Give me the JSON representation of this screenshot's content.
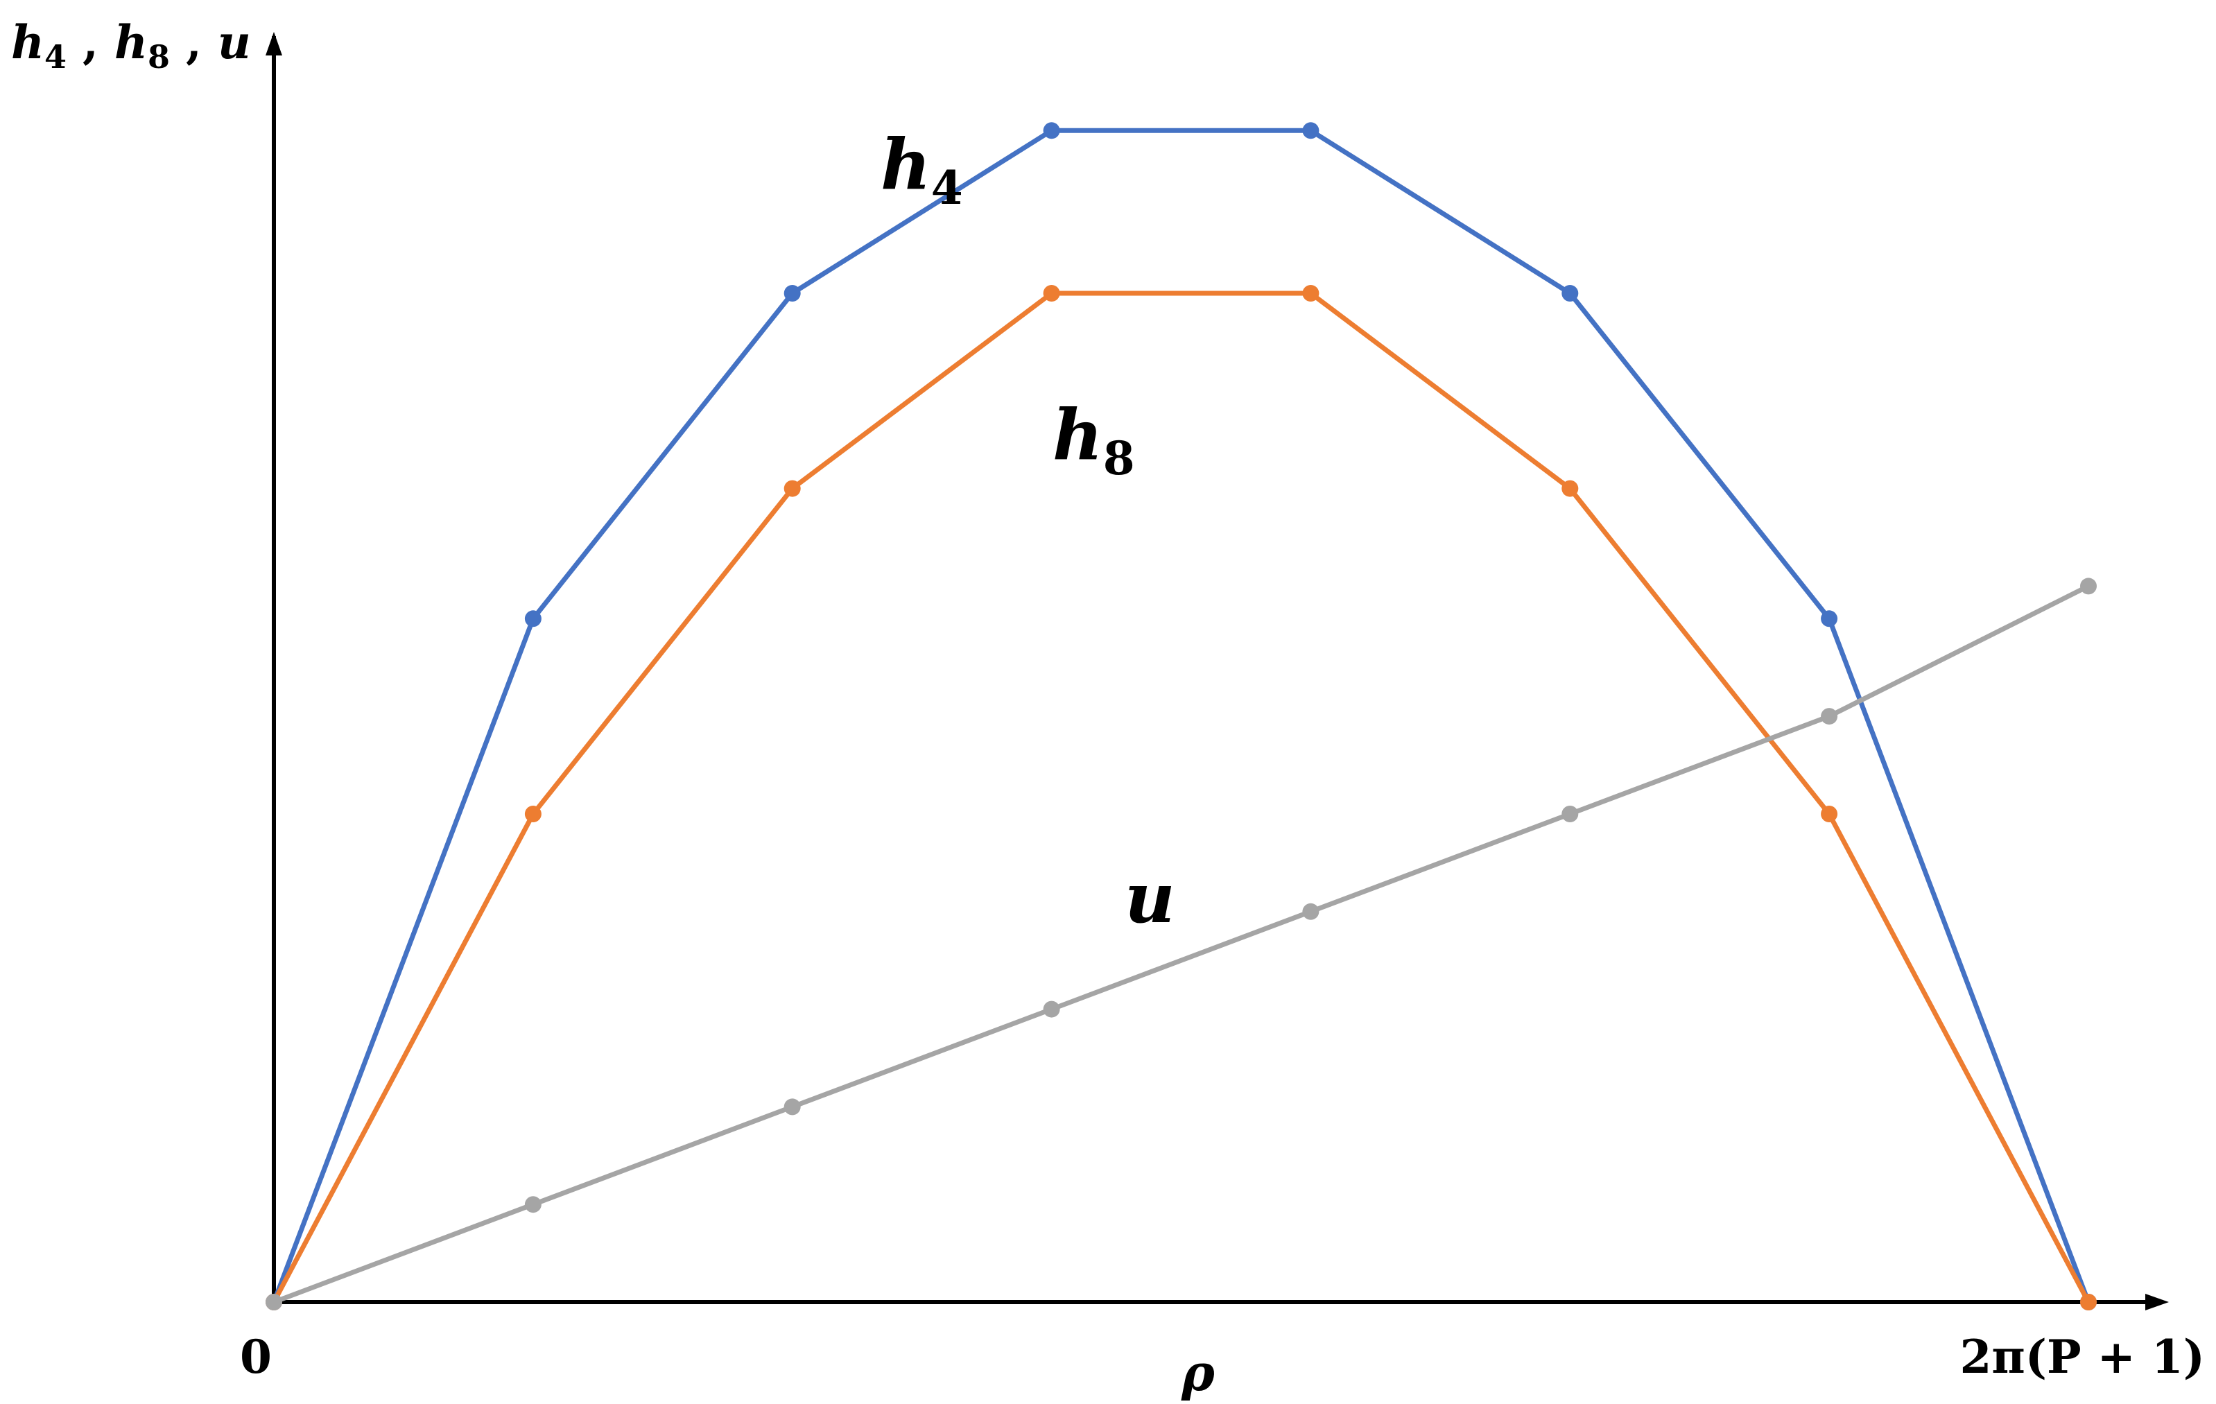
{
  "chart_data": {
    "type": "line",
    "title": "",
    "xlabel": "ρ",
    "ylabel": {
      "h4": "h",
      "h4_sub": "4",
      "sep1": " , ",
      "h8": "h",
      "h8_sub": "8",
      "sep2": " , ",
      "u": "u"
    },
    "x_tick_labels": {
      "start": "0",
      "end": "2π(P + 1)"
    },
    "x": [
      0,
      1,
      2,
      3,
      4,
      5,
      6,
      7
    ],
    "xlim": [
      0,
      7
    ],
    "ylim": [
      0,
      11
    ],
    "grid": false,
    "series": [
      {
        "name": "h4",
        "label_main": "h",
        "label_sub": "4",
        "color": "#4472C4",
        "values": [
          0,
          6.3,
          9.3,
          10.8,
          10.8,
          9.3,
          6.3,
          0
        ]
      },
      {
        "name": "h8",
        "label_main": "h",
        "label_sub": "8",
        "color": "#ED7D31",
        "values": [
          0,
          4.5,
          7.5,
          9.3,
          9.3,
          7.5,
          4.5,
          0
        ]
      },
      {
        "name": "u",
        "label_main": "u",
        "label_sub": "",
        "color": "#A5A5A5",
        "values": [
          0,
          0.9,
          1.8,
          2.7,
          3.6,
          4.5,
          5.4,
          6.6
        ]
      }
    ]
  }
}
